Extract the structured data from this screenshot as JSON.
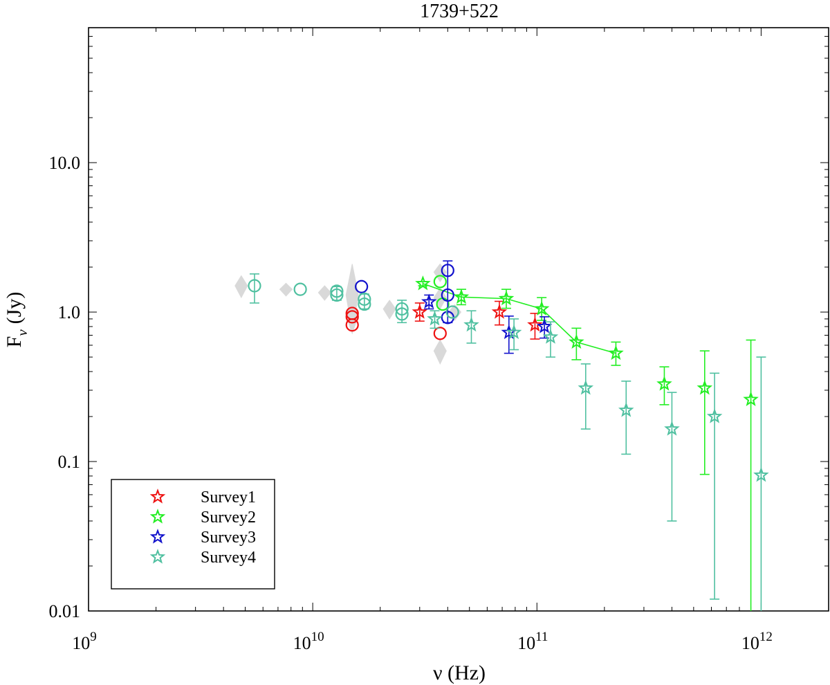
{
  "chart_data": {
    "type": "scatter",
    "title": "1739+522",
    "xlabel": "ν (Hz)",
    "ylabel_main": "F",
    "ylabel_sub": "ν",
    "ylabel_unit": "(Jy)",
    "xscale": "log",
    "yscale": "log",
    "xlim": [
      1000000000.0,
      2000000000000.0
    ],
    "ylim": [
      0.01,
      80
    ],
    "x_ticks": [
      {
        "value": 1000000000.0,
        "base": "10",
        "exp": "9"
      },
      {
        "value": 10000000000.0,
        "base": "10",
        "exp": "10"
      },
      {
        "value": 100000000000.0,
        "base": "10",
        "exp": "11"
      },
      {
        "value": 1000000000000.0,
        "base": "10",
        "exp": "12"
      }
    ],
    "y_ticks": [
      {
        "value": 0.01,
        "label": "0.01"
      },
      {
        "value": 0.1,
        "label": "0.1"
      },
      {
        "value": 1,
        "label": "1.0"
      },
      {
        "value": 10,
        "label": "10.0"
      }
    ],
    "legend": {
      "position": "bottom-left",
      "entries": [
        "Survey1",
        "Survey2",
        "Survey3",
        "Survey4"
      ]
    },
    "background_points": [
      {
        "x": 4800000000.0,
        "y": 1.5,
        "lo": 1.25,
        "hi": 1.75
      },
      {
        "x": 7600000000.0,
        "y": 1.42,
        "lo": 1.28,
        "hi": 1.56
      },
      {
        "x": 11300000000.0,
        "y": 1.35,
        "lo": 1.2,
        "hi": 1.5
      },
      {
        "x": 15000000000.0,
        "y": 1.3,
        "lo": 0.75,
        "hi": 2.1
      },
      {
        "x": 15000000000.0,
        "y": 0.95,
        "lo": 0.72,
        "hi": 1.2
      },
      {
        "x": 22000000000.0,
        "y": 1.05,
        "lo": 0.9,
        "hi": 1.2
      },
      {
        "x": 37000000000.0,
        "y": 1.85,
        "lo": 1.6,
        "hi": 2.1
      },
      {
        "x": 37000000000.0,
        "y": 1.25,
        "lo": 1.05,
        "hi": 1.45
      },
      {
        "x": 37000000000.0,
        "y": 0.55,
        "lo": 0.45,
        "hi": 0.65
      },
      {
        "x": 43000000000.0,
        "y": 1.0,
        "lo": 0.88,
        "hi": 1.12
      }
    ],
    "series": [
      {
        "name": "Survey1",
        "color": "#ee1111",
        "circles": [
          {
            "x": 15000000000.0,
            "y": 0.98
          },
          {
            "x": 15000000000.0,
            "y": 0.93
          },
          {
            "x": 15000000000.0,
            "y": 0.82
          },
          {
            "x": 37000000000.0,
            "y": 0.72
          }
        ],
        "stars": [
          {
            "x": 30000000000.0,
            "y": 1.0,
            "lo": 0.87,
            "hi": 1.15
          },
          {
            "x": 68000000000.0,
            "y": 1.0,
            "lo": 0.82,
            "hi": 1.18
          },
          {
            "x": 98000000000.0,
            "y": 0.82,
            "lo": 0.66,
            "hi": 0.98
          }
        ]
      },
      {
        "name": "Survey2",
        "color": "#22ee22",
        "line": true,
        "circles": [
          {
            "x": 37000000000.0,
            "y": 1.6
          },
          {
            "x": 38000000000.0,
            "y": 1.13
          }
        ],
        "stars": [
          {
            "x": 31000000000.0,
            "y": 1.55,
            "lo": 1.5,
            "hi": 1.6
          },
          {
            "x": 46000000000.0,
            "y": 1.26,
            "lo": 1.12,
            "hi": 1.42
          },
          {
            "x": 73000000000.0,
            "y": 1.23,
            "lo": 1.06,
            "hi": 1.42
          },
          {
            "x": 105000000000.0,
            "y": 1.05,
            "lo": 0.88,
            "hi": 1.25
          },
          {
            "x": 150000000000.0,
            "y": 0.63,
            "lo": 0.48,
            "hi": 0.78
          },
          {
            "x": 225000000000.0,
            "y": 0.53,
            "lo": 0.44,
            "hi": 0.63
          },
          {
            "x": 370000000000.0,
            "y": 0.33,
            "lo": 0.24,
            "hi": 0.43
          },
          {
            "x": 560000000000.0,
            "y": 0.31,
            "lo": 0.082,
            "hi": 0.55
          },
          {
            "x": 900000000000.0,
            "y": 0.26,
            "lo": 0.003,
            "hi": 0.65
          }
        ]
      },
      {
        "name": "Survey3",
        "color": "#1111cc",
        "circles": [
          {
            "x": 16500000000.0,
            "y": 1.48
          },
          {
            "x": 40000000000.0,
            "y": 1.9
          },
          {
            "x": 40000000000.0,
            "y": 1.3
          },
          {
            "x": 40000000000.0,
            "y": 0.92
          }
        ],
        "circle_errors": [
          {
            "x": 40000000000.0,
            "lo": 0.85,
            "hi": 2.2
          }
        ],
        "stars": [
          {
            "x": 33000000000.0,
            "y": 1.17,
            "lo": 1.05,
            "hi": 1.3
          },
          {
            "x": 75000000000.0,
            "y": 0.73,
            "lo": 0.53,
            "hi": 0.94
          },
          {
            "x": 108000000000.0,
            "y": 0.8,
            "lo": 0.67,
            "hi": 0.93
          }
        ]
      },
      {
        "name": "Survey4",
        "color": "#4fc0a0",
        "circles": [
          {
            "x": 5500000000.0,
            "y": 1.5
          },
          {
            "x": 8800000000.0,
            "y": 1.42
          },
          {
            "x": 12800000000.0,
            "y": 1.38
          },
          {
            "x": 12800000000.0,
            "y": 1.3
          },
          {
            "x": 17000000000.0,
            "y": 1.22
          },
          {
            "x": 17000000000.0,
            "y": 1.13
          },
          {
            "x": 25000000000.0,
            "y": 1.05
          },
          {
            "x": 25000000000.0,
            "y": 0.97
          },
          {
            "x": 42000000000.0,
            "y": 1.0
          }
        ],
        "circle_errors": [
          {
            "x": 5500000000.0,
            "lo": 1.15,
            "hi": 1.8
          },
          {
            "x": 12800000000.0,
            "lo": 1.2,
            "hi": 1.48
          },
          {
            "x": 17000000000.0,
            "lo": 1.05,
            "hi": 1.32
          },
          {
            "x": 25000000000.0,
            "lo": 0.85,
            "hi": 1.2
          }
        ],
        "stars": [
          {
            "x": 35000000000.0,
            "y": 0.9,
            "lo": 0.78,
            "hi": 1.02
          },
          {
            "x": 51000000000.0,
            "y": 0.82,
            "lo": 0.62,
            "hi": 1.02
          },
          {
            "x": 79000000000.0,
            "y": 0.73,
            "lo": 0.56,
            "hi": 0.9
          },
          {
            "x": 115000000000.0,
            "y": 0.68,
            "lo": 0.5,
            "hi": 0.86
          },
          {
            "x": 165000000000.0,
            "y": 0.31,
            "lo": 0.165,
            "hi": 0.45
          },
          {
            "x": 250000000000.0,
            "y": 0.22,
            "lo": 0.112,
            "hi": 0.345
          },
          {
            "x": 400000000000.0,
            "y": 0.165,
            "lo": 0.04,
            "hi": 0.29
          },
          {
            "x": 620000000000.0,
            "y": 0.2,
            "lo": 0.012,
            "hi": 0.39
          },
          {
            "x": 1000000000000.0,
            "y": 0.081,
            "lo": 0.004,
            "hi": 0.5
          }
        ]
      }
    ],
    "colors": {
      "background_points": "#d9d9d9",
      "axes": "#000000"
    }
  }
}
